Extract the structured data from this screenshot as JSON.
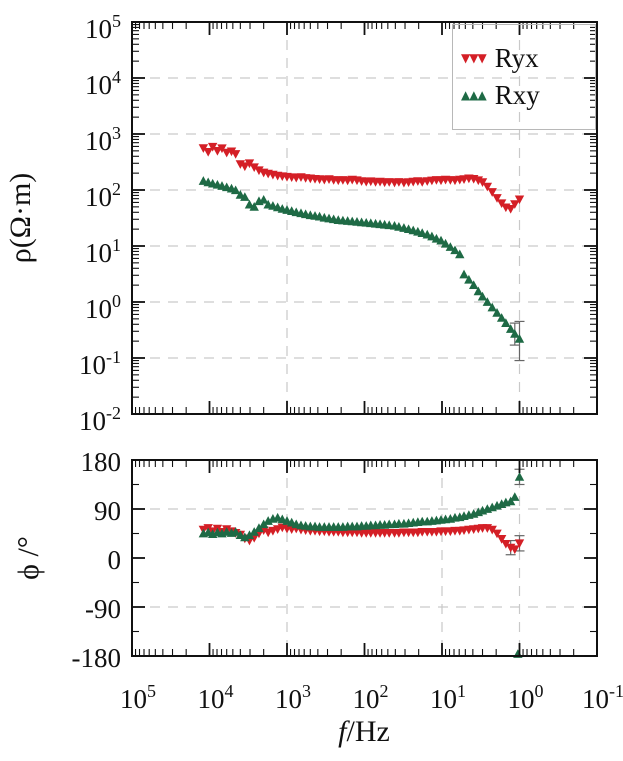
{
  "chart_data": {
    "type": "scatter",
    "xlabel_italic": "f",
    "xlabel_rest": "/Hz",
    "x_scale": "log",
    "x_range": [
      100000,
      0.1
    ],
    "x_reversed": true,
    "x_ticks": [
      {
        "base": "10",
        "exp": "5"
      },
      {
        "base": "10",
        "exp": "4"
      },
      {
        "base": "10",
        "exp": "3"
      },
      {
        "base": "10",
        "exp": "2"
      },
      {
        "base": "10",
        "exp": "1"
      },
      {
        "base": "10",
        "exp": "0"
      },
      {
        "base": "10",
        "exp": "-1"
      }
    ],
    "legend": {
      "position": "top-right",
      "items": [
        {
          "label": "Ryx",
          "marker": "triangle-down",
          "glyphs": "▼▼▼",
          "color": "#d41f26"
        },
        {
          "label": "Rxy",
          "marker": "triangle-up",
          "glyphs": "▲▲▲",
          "color": "#1e6a45"
        }
      ]
    },
    "colors": {
      "ryx": "#d41f26",
      "rxy": "#1e6a45",
      "grid": "#c9c9c9",
      "axis": "#111111",
      "error_bar": "#666666"
    },
    "frequencies": [
      12000,
      10400,
      9100,
      7900,
      6900,
      6000,
      5200,
      4600,
      4000,
      3500,
      3050,
      2650,
      2300,
      2000,
      1750,
      1520,
      1320,
      1150,
      1000,
      870,
      760,
      660,
      575,
      500,
      435,
      380,
      330,
      287,
      250,
      218,
      190,
      165,
      144,
      125,
      109,
      95,
      83,
      72,
      63,
      55,
      48,
      41,
      36,
      31,
      27,
      23.5,
      20.5,
      18,
      15.5,
      13.5,
      11.8,
      10.3,
      9,
      7.8,
      6.8,
      5.9,
      5.2,
      4.5,
      3.9,
      3.4,
      3.0,
      2.6,
      2.25,
      1.95,
      1.7,
      1.5,
      1.3,
      1.15,
      1.0
    ],
    "panels": [
      {
        "id": "resistivity",
        "ylabel": "ρ(Ω·m)",
        "y_scale": "log",
        "y_range": [
          0.01,
          100000
        ],
        "y_ticks": [
          {
            "base": "10",
            "exp": "5"
          },
          {
            "base": "10",
            "exp": "4"
          },
          {
            "base": "10",
            "exp": "3"
          },
          {
            "base": "10",
            "exp": "2"
          },
          {
            "base": "10",
            "exp": "1"
          },
          {
            "base": "10",
            "exp": "0"
          },
          {
            "base": "10",
            "exp": "-1"
          },
          {
            "base": "10",
            "exp": "-2"
          }
        ],
        "grid_h_values": [
          10000,
          1000,
          100,
          10,
          1,
          0.1
        ],
        "grid_v_freqs": [
          1000,
          1
        ],
        "series": [
          {
            "name": "Ryx",
            "marker": "triangle-down",
            "color": "#d41f26",
            "values": [
              560,
              480,
              590,
              500,
              555,
              465,
              490,
              440,
              290,
              265,
              300,
              255,
              225,
              205,
              196,
              188,
              180,
              176,
              172,
              169,
              166,
              170,
              164,
              161,
              158,
              156,
              153,
              156,
              151,
              149,
              151,
              148,
              153,
              149,
              144,
              141,
              143,
              139,
              141,
              137,
              139,
              136,
              139,
              135,
              138,
              141,
              144,
              139,
              144,
              148,
              151,
              149,
              153,
              151,
              149,
              153,
              156,
              161,
              158,
              149,
              138,
              115,
              92,
              72,
              58,
              49,
              46,
              56,
              68
            ],
            "error_bars": []
          },
          {
            "name": "Rxy",
            "marker": "triangle-up",
            "color": "#1e6a45",
            "values": [
              145,
              137,
              130,
              124,
              118,
              112,
              106,
              99,
              82,
              75,
              55,
              50,
              63,
              67,
              55,
              52,
              49,
              46,
              44,
              42,
              40,
              38.5,
              37,
              35.5,
              34.5,
              33.5,
              32,
              31,
              30,
              29,
              28.5,
              28,
              27.5,
              27,
              26.5,
              26,
              25.5,
              25,
              24.5,
              24,
              23.5,
              23,
              22,
              21,
              20,
              19,
              18,
              17,
              16,
              14.8,
              13.5,
              12.5,
              11,
              9.6,
              8.4,
              7.1,
              3.1,
              2.5,
              2.0,
              1.55,
              1.25,
              1.0,
              0.8,
              0.64,
              0.52,
              0.42,
              0.33,
              0.27,
              0.22
            ],
            "error_bars": [
              {
                "f": 1.15,
                "lo": 0.17,
                "hi": 0.42
              },
              {
                "f": 1.0,
                "lo": 0.09,
                "hi": 0.45
              }
            ]
          }
        ]
      },
      {
        "id": "phase",
        "ylabel": "ϕ /°",
        "y_scale": "linear",
        "y_range": [
          -180,
          180
        ],
        "y_ticks": [
          {
            "base": "180",
            "exp": ""
          },
          {
            "base": "90",
            "exp": ""
          },
          {
            "base": "0",
            "exp": ""
          },
          {
            "base": "-90",
            "exp": ""
          },
          {
            "base": "-180",
            "exp": ""
          }
        ],
        "y_tick_values": [
          180,
          90,
          0,
          -90,
          -180
        ],
        "grid_h_values": [
          90,
          -90
        ],
        "grid_v_freqs": [
          1000,
          10,
          1
        ],
        "series": [
          {
            "name": "Ryx",
            "marker": "triangle-down",
            "color": "#d41f26",
            "values": [
              52,
              55,
              49,
              54,
              48,
              53,
              49,
              46,
              43,
              36,
              32,
              37,
              45,
              51,
              47,
              50,
              53,
              56,
              54,
              53,
              54,
              52,
              51,
              50,
              50,
              49,
              49,
              48,
              48,
              48,
              47,
              47,
              47,
              47,
              46,
              46,
              46,
              46,
              46,
              46,
              46,
              46,
              46,
              47,
              47,
              47,
              47,
              48,
              48,
              48,
              48,
              49,
              49,
              49,
              50,
              50,
              51,
              52,
              53,
              54,
              55,
              55,
              52,
              45,
              35,
              26,
              19,
              16,
              27
            ],
            "error_bars": [
              {
                "f": 1.3,
                "lo": 6,
                "hi": 32
              },
              {
                "f": 1.0,
                "lo": 13,
                "hi": 41
              }
            ]
          },
          {
            "name": "Rxy",
            "marker": "triangle-up",
            "color": "#1e6a45",
            "values": [
              45,
              47,
              44,
              47,
              45,
              48,
              46,
              48,
              42,
              38,
              42,
              48,
              55,
              62,
              68,
              72,
              74,
              71,
              68,
              65,
              62,
              60,
              59,
              58,
              58,
              57,
              57,
              57,
              57,
              57,
              57,
              58,
              58,
              58,
              59,
              59,
              60,
              60,
              61,
              61,
              62,
              62,
              63,
              63,
              64,
              65,
              66,
              67,
              67,
              68,
              69,
              70,
              71,
              72,
              74,
              75,
              77,
              79,
              81,
              84,
              87,
              90,
              93,
              96,
              99,
              102,
              104,
              112,
              149
            ],
            "error_bars": [
              {
                "f": 1.0,
                "lo": 135,
                "hi": 163
              }
            ],
            "outliers": [
              [
                1.05,
                -180
              ]
            ]
          }
        ]
      }
    ]
  }
}
